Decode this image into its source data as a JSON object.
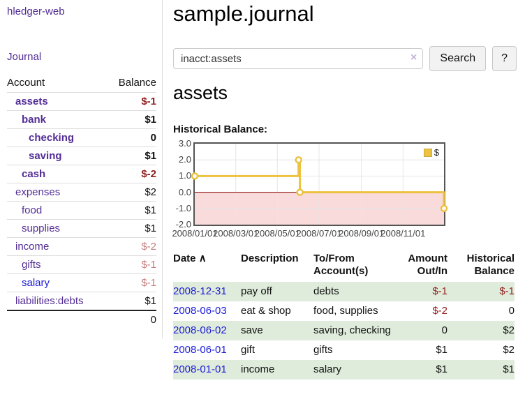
{
  "brand": "hledger-web",
  "sidebar": {
    "journal_link": "Journal",
    "accounts_table": {
      "col_account": "Account",
      "col_balance": "Balance",
      "rows": [
        {
          "name": "assets",
          "balance": "$-1",
          "depth": 1,
          "bold": true,
          "neg": "dark"
        },
        {
          "name": "bank",
          "balance": "$1",
          "depth": 2,
          "bold": true,
          "neg": "none"
        },
        {
          "name": "checking",
          "balance": "0",
          "depth": 3,
          "bold": true,
          "neg": "none"
        },
        {
          "name": "saving",
          "balance": "$1",
          "depth": 3,
          "bold": true,
          "neg": "none"
        },
        {
          "name": "cash",
          "balance": "$-2",
          "depth": 2,
          "bold": true,
          "neg": "dark"
        },
        {
          "name": "expenses",
          "balance": "$2",
          "depth": 1,
          "bold": false,
          "neg": "none"
        },
        {
          "name": "food",
          "balance": "$1",
          "depth": 2,
          "bold": false,
          "neg": "none"
        },
        {
          "name": "supplies",
          "balance": "$1",
          "depth": 2,
          "bold": false,
          "neg": "none"
        },
        {
          "name": "income",
          "balance": "$-2",
          "depth": 1,
          "bold": false,
          "neg": "light"
        },
        {
          "name": "gifts",
          "balance": "$-1",
          "depth": 2,
          "bold": false,
          "neg": "light"
        },
        {
          "name": "salary",
          "balance": "$-1",
          "depth": 2,
          "bold": false,
          "neg": "light",
          "link_color": "blue"
        },
        {
          "name": "liabilities:debts",
          "balance": "$1",
          "depth": 1,
          "bold": false,
          "neg": "none"
        }
      ],
      "total": "0"
    }
  },
  "header": {
    "title": "sample.journal"
  },
  "search": {
    "value": "inacct:assets",
    "placeholder": "",
    "clear_icon": "×",
    "search_button": "Search",
    "help_button": "?"
  },
  "account_page": {
    "heading": "assets",
    "chart_label": "Historical Balance:"
  },
  "chart_data": {
    "type": "line",
    "step": true,
    "title": "Historical Balance",
    "legend": [
      {
        "label": "$",
        "color": "#edc240"
      }
    ],
    "legend_position": "top-right",
    "ylim": [
      -2,
      3
    ],
    "yticks": [
      {
        "label": "3.0",
        "value": 3
      },
      {
        "label": "2.0",
        "value": 2
      },
      {
        "label": "1.0",
        "value": 1
      },
      {
        "label": "0.0",
        "value": 0
      },
      {
        "label": "-1.0",
        "value": -1
      },
      {
        "label": "-2.0",
        "value": -2
      }
    ],
    "xrange": [
      "2008-01-01",
      "2008-12-31"
    ],
    "xticks": [
      {
        "label": "2008/01/01",
        "date": "2008-01-01"
      },
      {
        "label": "2008/03/01",
        "date": "2008-03-01"
      },
      {
        "label": "2008/05/01",
        "date": "2008-05-01"
      },
      {
        "label": "2008/07/01",
        "date": "2008-07-01"
      },
      {
        "label": "2008/09/01",
        "date": "2008-09-01"
      },
      {
        "label": "2008/11/01",
        "date": "2008-11-01"
      }
    ],
    "series": [
      {
        "name": "$",
        "color": "#edc240",
        "points": [
          [
            "2008-01-01",
            1
          ],
          [
            "2008-06-01",
            2
          ],
          [
            "2008-06-03",
            0
          ],
          [
            "2008-12-31",
            -1
          ]
        ]
      }
    ],
    "grid_on": true,
    "grid_color": "#e6e6e6",
    "negative_region_color": "#f9dbdb",
    "zero_line_color": "#8b0000"
  },
  "register": {
    "sort_indicator": "∧",
    "columns": [
      {
        "label": "Date",
        "align": "left",
        "sorted": true
      },
      {
        "label": "Description",
        "align": "left",
        "sorted": false
      },
      {
        "label": "To/From Account(s)",
        "align": "left",
        "sorted": false
      },
      {
        "label": "Amount Out/In",
        "align": "right",
        "sorted": false
      },
      {
        "label": "Historical Balance",
        "align": "right",
        "sorted": false
      }
    ],
    "rows": [
      {
        "date": "2008-12-31",
        "description": "pay off",
        "accounts": "debts",
        "amount": "$-1",
        "amount_neg": true,
        "balance": "$-1",
        "balance_neg": true
      },
      {
        "date": "2008-06-03",
        "description": "eat & shop",
        "accounts": "food, supplies",
        "amount": "$-2",
        "amount_neg": true,
        "balance": "0",
        "balance_neg": false
      },
      {
        "date": "2008-06-02",
        "description": "save",
        "accounts": "saving, checking",
        "amount": "0",
        "amount_neg": false,
        "balance": "$2",
        "balance_neg": false
      },
      {
        "date": "2008-06-01",
        "description": "gift",
        "accounts": "gifts",
        "amount": "$1",
        "amount_neg": false,
        "balance": "$2",
        "balance_neg": false
      },
      {
        "date": "2008-01-01",
        "description": "income",
        "accounts": "salary",
        "amount": "$1",
        "amount_neg": false,
        "balance": "$1",
        "balance_neg": false
      }
    ]
  },
  "colors": {
    "link_purple": "#532d96",
    "link_blue": "#1c1cd6",
    "negative_dark": "#8f1f1f",
    "negative_light": "#c47d7d",
    "row_stripe_green": "#dfecdb",
    "chart_gold": "#edc240",
    "chart_negative_pink": "#f9dbdb",
    "chart_zero_line": "#8b0000"
  }
}
